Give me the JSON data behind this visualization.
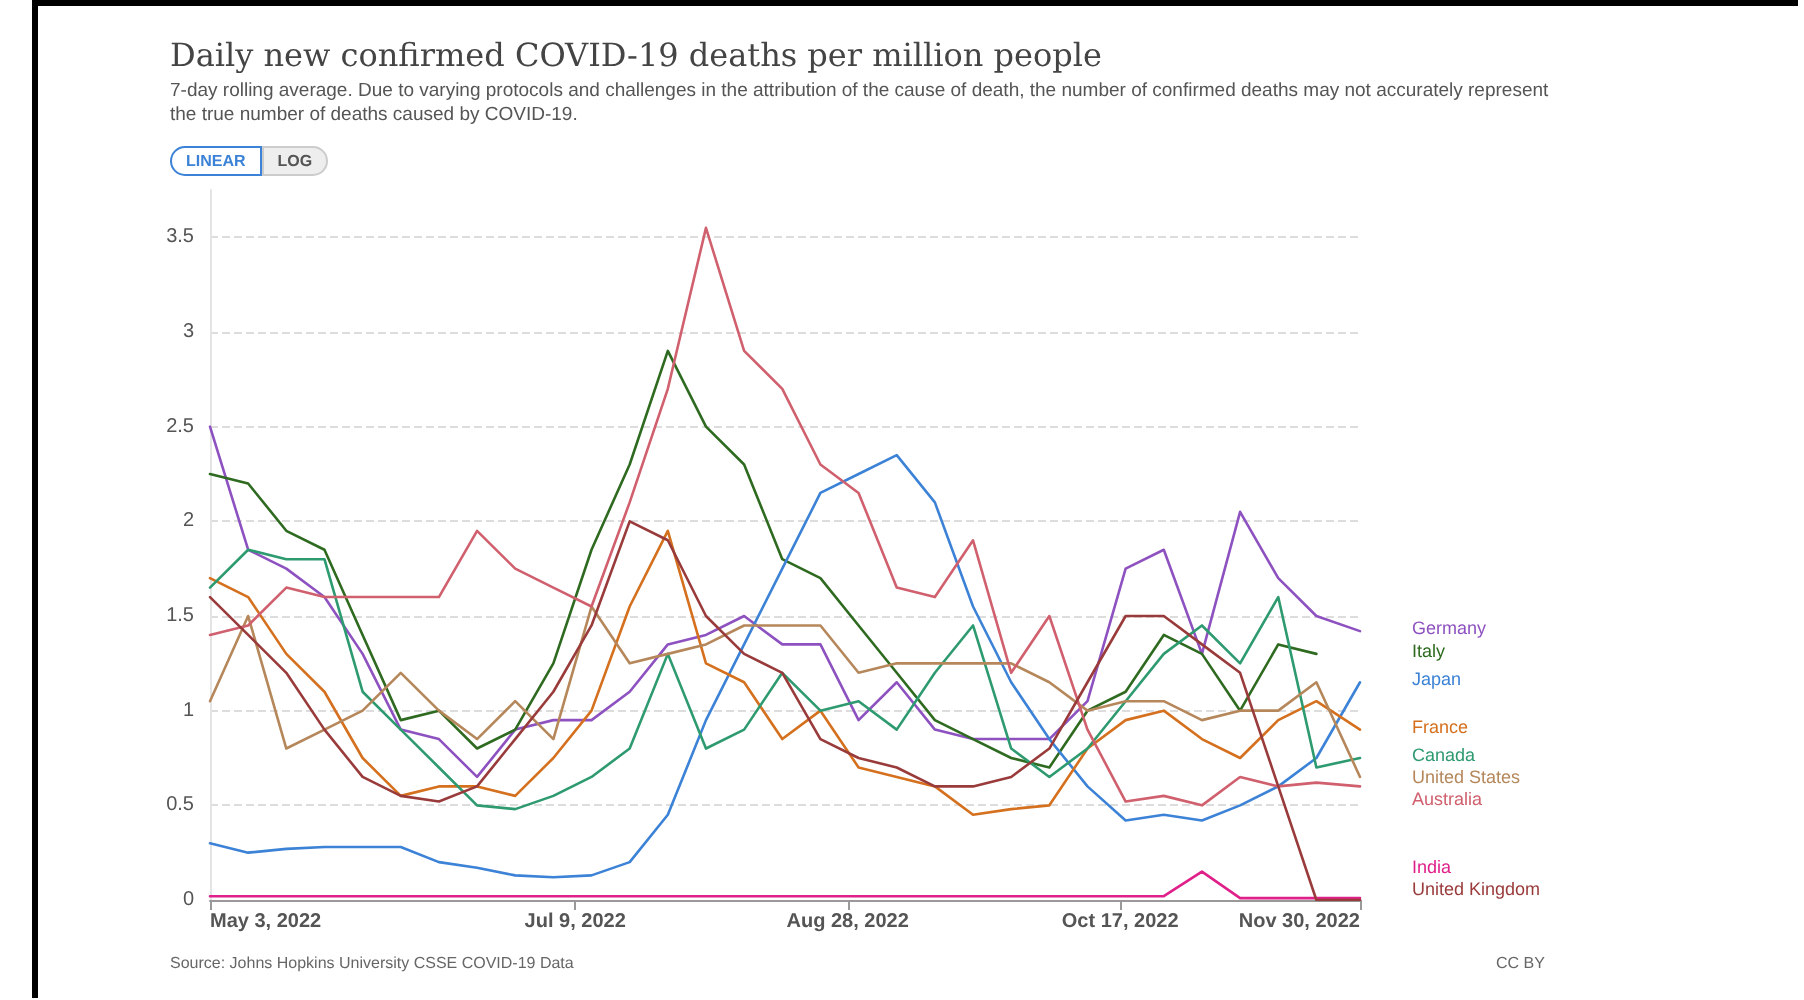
{
  "chart_data": {
    "type": "line",
    "title": "Daily new confirmed COVID-19 deaths per million people",
    "subtitle": "7-day rolling average. Due to varying protocols and challenges in the attribution of the cause of death, the number of confirmed deaths may not accurately represent the true number of deaths caused by COVID-19.",
    "annotations": [
      "LINEAR",
      "LOG",
      "Source: Johns Hopkins University CSSE COVID-19 Data",
      "CC BY"
    ],
    "x": [
      "2022-05-03",
      "2022-05-10",
      "2022-05-17",
      "2022-05-24",
      "2022-05-31",
      "2022-06-07",
      "2022-06-14",
      "2022-06-21",
      "2022-06-28",
      "2022-07-05",
      "2022-07-12",
      "2022-07-19",
      "2022-07-26",
      "2022-08-02",
      "2022-08-09",
      "2022-08-16",
      "2022-08-23",
      "2022-08-30",
      "2022-09-06",
      "2022-09-13",
      "2022-09-20",
      "2022-09-27",
      "2022-10-04",
      "2022-10-11",
      "2022-10-18",
      "2022-10-25",
      "2022-11-01",
      "2022-11-08",
      "2022-11-15",
      "2022-11-22",
      "2022-11-30"
    ],
    "series": [
      {
        "name": "Germany",
        "color": "#8e52c0",
        "values": [
          2.5,
          1.85,
          1.75,
          1.6,
          1.3,
          0.9,
          0.85,
          0.65,
          0.9,
          0.95,
          0.95,
          1.1,
          1.35,
          1.4,
          1.5,
          1.35,
          1.35,
          0.95,
          1.15,
          0.9,
          0.85,
          0.85,
          0.85,
          1.05,
          1.75,
          1.85,
          1.3,
          2.05,
          1.7,
          1.5,
          1.42
        ]
      },
      {
        "name": "Italy",
        "color": "#2e6a1f",
        "values": [
          2.25,
          2.2,
          1.95,
          1.85,
          1.4,
          0.95,
          1.0,
          0.8,
          0.9,
          1.25,
          1.85,
          2.3,
          2.9,
          2.5,
          2.3,
          1.8,
          1.7,
          1.45,
          1.2,
          0.95,
          0.85,
          0.75,
          0.7,
          1.0,
          1.1,
          1.4,
          1.3,
          1.0,
          1.35,
          1.3,
          null
        ]
      },
      {
        "name": "Japan",
        "color": "#3c82d6",
        "values": [
          0.3,
          0.25,
          0.27,
          0.28,
          0.28,
          0.28,
          0.2,
          0.17,
          0.13,
          0.12,
          0.13,
          0.2,
          0.45,
          0.95,
          1.35,
          1.75,
          2.15,
          2.25,
          2.35,
          2.1,
          1.55,
          1.15,
          0.85,
          0.6,
          0.42,
          0.45,
          0.42,
          0.5,
          0.6,
          0.75,
          1.15
        ]
      },
      {
        "name": "France",
        "color": "#d4701e",
        "values": [
          1.7,
          1.6,
          1.3,
          1.1,
          0.75,
          0.55,
          0.6,
          0.6,
          0.55,
          0.75,
          1.0,
          1.55,
          1.95,
          1.25,
          1.15,
          0.85,
          1.0,
          0.7,
          0.65,
          0.6,
          0.45,
          0.48,
          0.5,
          0.8,
          0.95,
          1.0,
          0.85,
          0.75,
          0.95,
          1.05,
          0.9
        ]
      },
      {
        "name": "Canada",
        "color": "#2e9a70",
        "values": [
          1.65,
          1.85,
          1.8,
          1.8,
          1.1,
          0.9,
          0.7,
          0.5,
          0.48,
          0.55,
          0.65,
          0.8,
          1.3,
          0.8,
          0.9,
          1.2,
          1.0,
          1.05,
          0.9,
          1.2,
          1.45,
          0.8,
          0.65,
          0.8,
          1.05,
          1.3,
          1.45,
          1.25,
          1.6,
          0.7,
          0.75
        ]
      },
      {
        "name": "United States",
        "color": "#b5875a",
        "values": [
          1.05,
          1.5,
          0.8,
          0.9,
          1.0,
          1.2,
          1.0,
          0.85,
          1.05,
          0.85,
          1.55,
          1.25,
          1.3,
          1.35,
          1.45,
          1.45,
          1.45,
          1.2,
          1.25,
          1.25,
          1.25,
          1.25,
          1.15,
          1.0,
          1.05,
          1.05,
          0.95,
          1.0,
          1.0,
          1.15,
          0.65
        ]
      },
      {
        "name": "Australia",
        "color": "#d0606e",
        "values": [
          1.4,
          1.45,
          1.65,
          1.6,
          1.6,
          1.6,
          1.6,
          1.95,
          1.75,
          1.65,
          1.55,
          2.1,
          2.7,
          3.55,
          2.9,
          2.7,
          2.3,
          2.15,
          1.65,
          1.6,
          1.9,
          1.2,
          1.5,
          0.9,
          0.52,
          0.55,
          0.5,
          0.65,
          0.6,
          0.62,
          0.6
        ]
      },
      {
        "name": "India",
        "color": "#e0208a",
        "values": [
          0.02,
          0.02,
          0.02,
          0.02,
          0.02,
          0.02,
          0.02,
          0.02,
          0.02,
          0.02,
          0.02,
          0.02,
          0.02,
          0.02,
          0.02,
          0.02,
          0.02,
          0.02,
          0.02,
          0.02,
          0.02,
          0.02,
          0.02,
          0.02,
          0.02,
          0.02,
          0.15,
          0.01,
          0.01,
          0.01,
          0.01
        ]
      },
      {
        "name": "United Kingdom",
        "color": "#9a3b3b",
        "values": [
          1.6,
          1.4,
          1.2,
          0.9,
          0.65,
          0.55,
          0.52,
          0.6,
          0.85,
          1.1,
          1.45,
          2.0,
          1.9,
          1.5,
          1.3,
          1.2,
          0.85,
          0.75,
          0.7,
          0.6,
          0.6,
          0.65,
          0.8,
          1.15,
          1.5,
          1.5,
          1.35,
          1.2,
          0.6,
          0,
          0
        ]
      }
    ],
    "xlim": [
      "2022-05-03",
      "2022-11-30"
    ],
    "xticks": [
      {
        "value": "2022-05-03",
        "label": "May 3, 2022"
      },
      {
        "value": "2022-07-09",
        "label": "Jul 9, 2022"
      },
      {
        "value": "2022-08-28",
        "label": "Aug 28, 2022"
      },
      {
        "value": "2022-10-17",
        "label": "Oct 17, 2022"
      },
      {
        "value": "2022-11-30",
        "label": "Nov 30, 2022"
      }
    ],
    "ylim": [
      0,
      3.75
    ],
    "yticks": [
      0,
      0.5,
      1,
      1.5,
      2,
      2.5,
      3,
      3.5
    ],
    "grid": "y",
    "legend": "right",
    "marker": "none",
    "line_style": "solid"
  }
}
